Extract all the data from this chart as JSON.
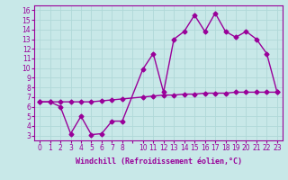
{
  "xlabel": "Windchill (Refroidissement éolien,°C)",
  "x_hours": [
    0,
    1,
    2,
    3,
    4,
    5,
    6,
    7,
    8,
    10,
    11,
    12,
    13,
    14,
    15,
    16,
    17,
    18,
    19,
    20,
    21,
    22,
    23
  ],
  "line1_y": [
    6.5,
    6.5,
    6.0,
    3.2,
    5.0,
    3.1,
    3.2,
    4.5,
    4.5,
    9.9,
    11.5,
    7.5,
    13.0,
    13.8,
    15.5,
    13.8,
    15.7,
    13.8,
    13.2,
    13.8,
    13.0,
    11.5,
    7.5
  ],
  "line2_y": [
    6.5,
    6.5,
    6.5,
    6.5,
    6.5,
    6.5,
    6.6,
    6.7,
    6.8,
    7.0,
    7.1,
    7.2,
    7.2,
    7.3,
    7.3,
    7.4,
    7.4,
    7.4,
    7.5,
    7.5,
    7.5,
    7.5,
    7.5
  ],
  "line_color": "#990099",
  "bg_color": "#c8e8e8",
  "grid_color": "#b0d8d8",
  "ylim": [
    2.5,
    16.5
  ],
  "xlim": [
    -0.5,
    23.5
  ],
  "yticks": [
    3,
    4,
    5,
    6,
    7,
    8,
    9,
    10,
    11,
    12,
    13,
    14,
    15,
    16
  ],
  "xtick_positions": [
    0,
    1,
    2,
    3,
    4,
    5,
    6,
    7,
    8,
    9,
    10,
    11,
    12,
    13,
    14,
    15,
    16,
    17,
    18,
    19,
    20,
    21,
    22,
    23
  ],
  "xtick_labels": [
    "0",
    "1",
    "2",
    "3",
    "4",
    "5",
    "6",
    "7",
    "8",
    "",
    "10",
    "11",
    "12",
    "13",
    "14",
    "15",
    "16",
    "17",
    "18",
    "19",
    "20",
    "21",
    "22",
    "23"
  ],
  "marker": "D",
  "markersize": 2.5,
  "linewidth": 1.0,
  "ylabel_fontsize": 6,
  "xlabel_fontsize": 6,
  "tick_fontsize": 5.5
}
